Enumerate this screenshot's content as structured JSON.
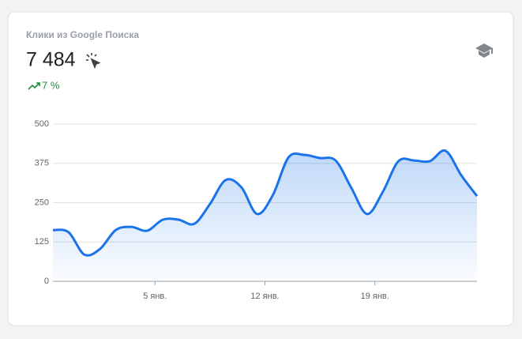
{
  "card": {
    "title": "Клики из Google Поиска",
    "value": "7 484",
    "change": "7 %"
  },
  "chart_data": {
    "type": "line",
    "categories": [
      null,
      null,
      null,
      null,
      null,
      null,
      "5 янв.",
      null,
      null,
      null,
      null,
      null,
      null,
      "12 янв.",
      null,
      null,
      null,
      null,
      null,
      null,
      "19 янв.",
      null,
      null,
      null,
      null,
      null,
      null,
      null
    ],
    "series": [
      {
        "name": null,
        "color": "#1a73e8",
        "values": [
          163,
          156,
          85,
          103,
          163,
          173,
          161,
          196,
          196,
          183,
          246,
          322,
          299,
          214,
          274,
          394,
          402,
          392,
          384,
          297,
          214,
          284,
          382,
          384,
          382,
          415,
          337,
          271
        ]
      }
    ],
    "ylim": [
      0,
      500
    ],
    "yticks": [
      0,
      125,
      250,
      375,
      500
    ],
    "grid": true
  }
}
